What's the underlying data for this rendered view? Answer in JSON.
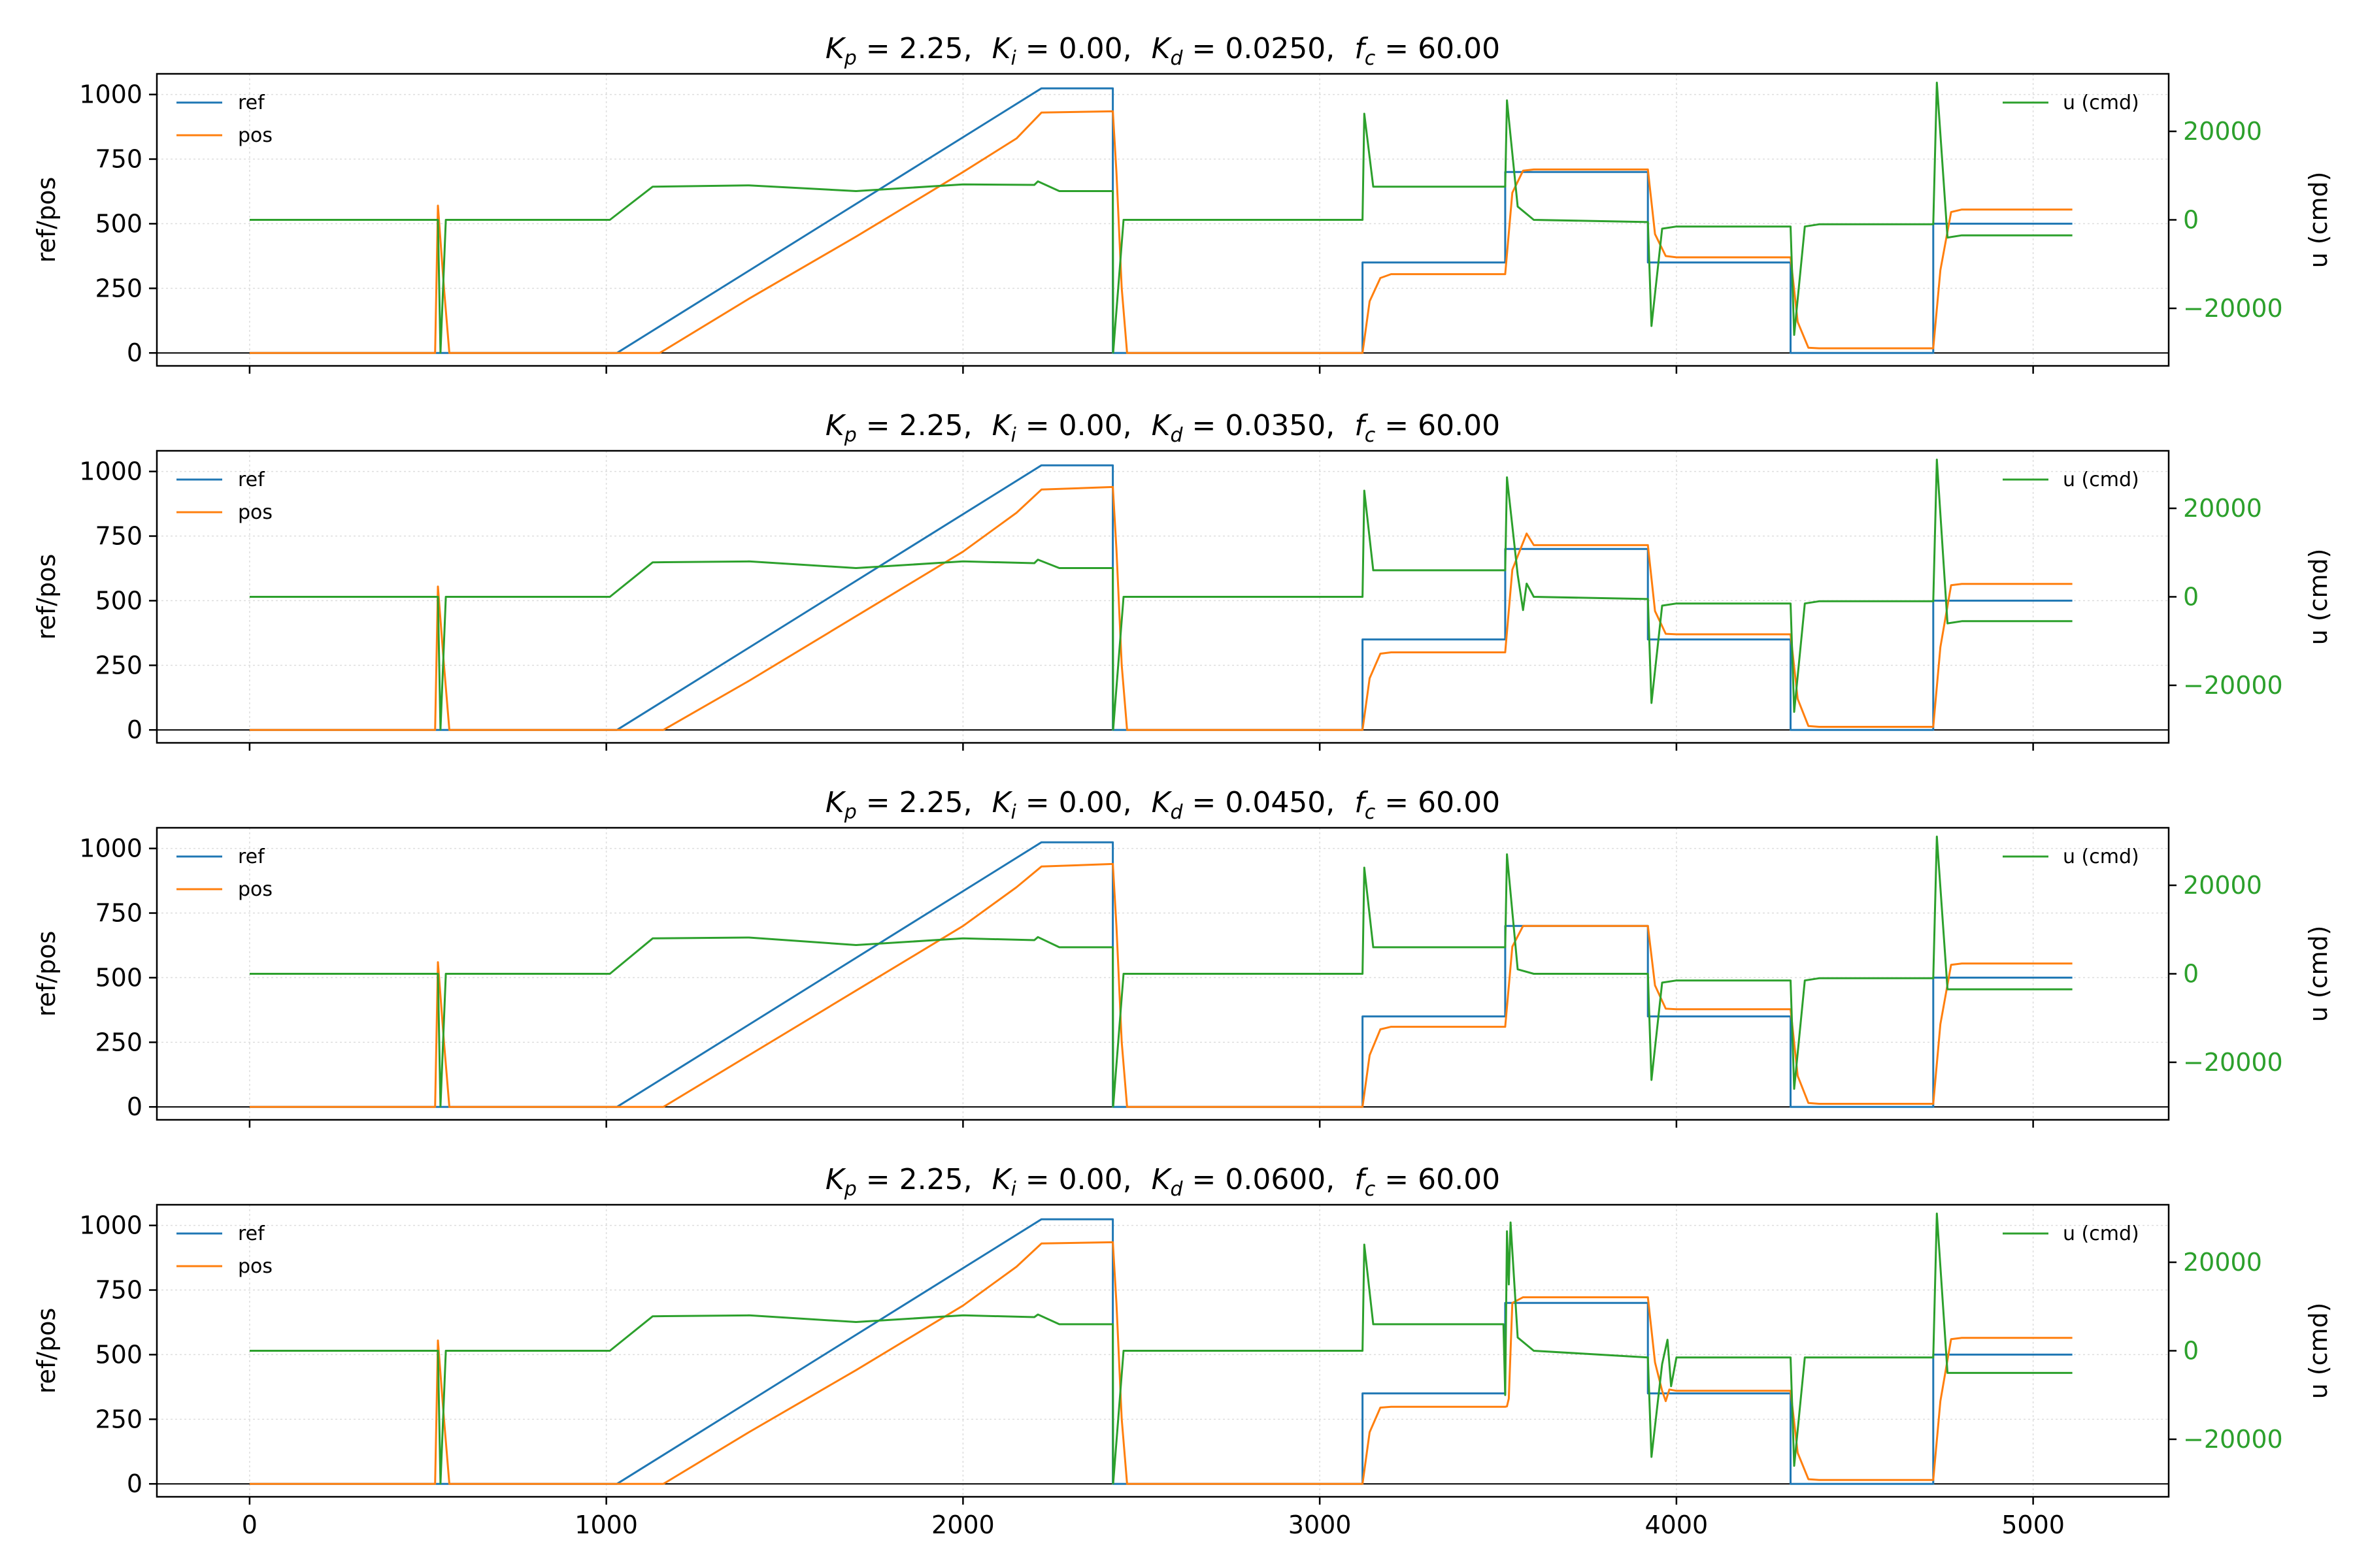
{
  "colors": {
    "ref": "#1f77b4",
    "pos": "#ff7f0e",
    "u": "#2ca02c",
    "grid": "#dddddd"
  },
  "chart_data": [
    {
      "type": "line",
      "title": "K_p = 2.25,  K_i = 0.00,  K_d = 0.0250,  f_c = 60.00",
      "title_parts": {
        "kp": "2.25",
        "ki": "0.00",
        "kd": "0.0250",
        "fc": "60.00"
      },
      "ylabel": "ref/pos",
      "ylabel_right": "u (cmd)",
      "xlim": [
        -260,
        5380
      ],
      "ylim": [
        -50,
        1080
      ],
      "ylim_right": [
        -33000,
        33000
      ],
      "xticks": [
        0,
        1000,
        2000,
        3000,
        4000,
        5000
      ],
      "yticks": [
        0,
        250,
        500,
        750,
        1000
      ],
      "yticks_right": [
        -20000,
        0,
        20000
      ],
      "x_tick_labels_visible": false,
      "grid": true,
      "legend_left": "upper-left",
      "legend_right": "upper-right",
      "series": [
        {
          "name": "ref",
          "axis": "left",
          "x": [
            0,
            1030,
            2220,
            2420,
            2420,
            3120,
            3120,
            3520,
            3520,
            3920,
            3920,
            4320,
            4320,
            4720,
            4720,
            5110
          ],
          "y": [
            0,
            0,
            1024,
            1024,
            0,
            0,
            350,
            350,
            700,
            700,
            350,
            350,
            0,
            0,
            500,
            500
          ]
        },
        {
          "name": "pos",
          "axis": "left",
          "x": [
            0,
            520,
            528,
            545,
            560,
            1150,
            1400,
            1700,
            2000,
            2150,
            2220,
            2420,
            2430,
            2445,
            2460,
            3120,
            3140,
            3170,
            3200,
            3520,
            3540,
            3570,
            3600,
            3920,
            3940,
            3970,
            4000,
            4320,
            4340,
            4370,
            4400,
            4720,
            4740,
            4770,
            4800,
            5110
          ],
          "y": [
            0,
            0,
            570,
            250,
            0,
            0,
            210,
            450,
            700,
            830,
            930,
            935,
            700,
            250,
            0,
            0,
            200,
            290,
            305,
            305,
            620,
            705,
            710,
            710,
            460,
            375,
            370,
            370,
            120,
            20,
            18,
            18,
            320,
            545,
            555,
            555
          ]
        },
        {
          "name": "u (cmd)",
          "axis": "right",
          "x": [
            0,
            520,
            528,
            535,
            550,
            560,
            1010,
            1130,
            1400,
            1700,
            2000,
            2200,
            2210,
            2270,
            2420,
            2421,
            2450,
            3120,
            3125,
            3150,
            3200,
            3520,
            3525,
            3555,
            3600,
            3920,
            3930,
            3960,
            4000,
            4320,
            4330,
            4360,
            4400,
            4720,
            4730,
            4760,
            4800,
            5110
          ],
          "y": [
            0,
            0,
            0,
            -30000,
            0,
            0,
            0,
            7500,
            7800,
            6500,
            8000,
            7900,
            8700,
            6500,
            6500,
            -30000,
            0,
            0,
            24000,
            7500,
            7500,
            7500,
            27000,
            3000,
            0,
            -500,
            -24000,
            -2000,
            -1500,
            -1500,
            -26000,
            -1500,
            -1000,
            -1000,
            31000,
            -4000,
            -3500,
            -3500
          ]
        }
      ]
    },
    {
      "type": "line",
      "title": "K_p = 2.25,  K_i = 0.00,  K_d = 0.0350,  f_c = 60.00",
      "title_parts": {
        "kp": "2.25",
        "ki": "0.00",
        "kd": "0.0350",
        "fc": "60.00"
      },
      "ylabel": "ref/pos",
      "ylabel_right": "u (cmd)",
      "xlim": [
        -260,
        5380
      ],
      "ylim": [
        -50,
        1080
      ],
      "ylim_right": [
        -33000,
        33000
      ],
      "xticks": [
        0,
        1000,
        2000,
        3000,
        4000,
        5000
      ],
      "yticks": [
        0,
        250,
        500,
        750,
        1000
      ],
      "yticks_right": [
        -20000,
        0,
        20000
      ],
      "x_tick_labels_visible": false,
      "grid": true,
      "legend_left": "upper-left",
      "legend_right": "upper-right",
      "series": [
        {
          "name": "ref",
          "axis": "left",
          "x": [
            0,
            1030,
            2220,
            2420,
            2420,
            3120,
            3120,
            3520,
            3520,
            3920,
            3920,
            4320,
            4320,
            4720,
            4720,
            5110
          ],
          "y": [
            0,
            0,
            1024,
            1024,
            0,
            0,
            350,
            350,
            700,
            700,
            350,
            350,
            0,
            0,
            500,
            500
          ]
        },
        {
          "name": "pos",
          "axis": "left",
          "x": [
            0,
            520,
            528,
            545,
            560,
            1160,
            1400,
            1700,
            2000,
            2150,
            2220,
            2420,
            2430,
            2445,
            2460,
            3120,
            3140,
            3170,
            3200,
            3520,
            3540,
            3560,
            3580,
            3600,
            3920,
            3940,
            3970,
            4000,
            4320,
            4340,
            4370,
            4400,
            4720,
            4740,
            4770,
            4800,
            5110
          ],
          "y": [
            0,
            0,
            555,
            250,
            0,
            0,
            190,
            440,
            690,
            840,
            930,
            940,
            700,
            250,
            0,
            0,
            200,
            295,
            300,
            300,
            620,
            690,
            760,
            715,
            715,
            460,
            372,
            370,
            370,
            120,
            15,
            12,
            12,
            320,
            560,
            565,
            565
          ]
        },
        {
          "name": "u (cmd)",
          "axis": "right",
          "x": [
            0,
            520,
            528,
            535,
            550,
            560,
            1010,
            1130,
            1400,
            1700,
            2000,
            2200,
            2210,
            2270,
            2420,
            2421,
            2450,
            3120,
            3125,
            3150,
            3200,
            3520,
            3525,
            3555,
            3570,
            3580,
            3600,
            3920,
            3930,
            3960,
            4000,
            4320,
            4330,
            4360,
            4400,
            4720,
            4730,
            4760,
            4800,
            5110
          ],
          "y": [
            0,
            0,
            0,
            -30000,
            0,
            0,
            0,
            7800,
            8000,
            6500,
            8000,
            7600,
            8400,
            6500,
            6500,
            -30000,
            0,
            0,
            24000,
            6000,
            6000,
            6000,
            27000,
            5000,
            -3000,
            3000,
            0,
            -500,
            -24000,
            -2000,
            -1500,
            -1500,
            -26000,
            -1500,
            -1000,
            -1000,
            31000,
            -6000,
            -5500,
            -5500
          ]
        }
      ]
    },
    {
      "type": "line",
      "title": "K_p = 2.25,  K_i = 0.00,  K_d = 0.0450,  f_c = 60.00",
      "title_parts": {
        "kp": "2.25",
        "ki": "0.00",
        "kd": "0.0450",
        "fc": "60.00"
      },
      "ylabel": "ref/pos",
      "ylabel_right": "u (cmd)",
      "xlim": [
        -260,
        5380
      ],
      "ylim": [
        -50,
        1080
      ],
      "ylim_right": [
        -33000,
        33000
      ],
      "xticks": [
        0,
        1000,
        2000,
        3000,
        4000,
        5000
      ],
      "yticks": [
        0,
        250,
        500,
        750,
        1000
      ],
      "yticks_right": [
        -20000,
        0,
        20000
      ],
      "x_tick_labels_visible": false,
      "grid": true,
      "legend_left": "upper-left",
      "legend_right": "upper-right",
      "series": [
        {
          "name": "ref",
          "axis": "left",
          "x": [
            0,
            1030,
            2220,
            2420,
            2420,
            3120,
            3120,
            3520,
            3520,
            3920,
            3920,
            4320,
            4320,
            4720,
            4720,
            5110
          ],
          "y": [
            0,
            0,
            1024,
            1024,
            0,
            0,
            350,
            350,
            700,
            700,
            350,
            350,
            0,
            0,
            500,
            500
          ]
        },
        {
          "name": "pos",
          "axis": "left",
          "x": [
            0,
            520,
            528,
            545,
            560,
            1160,
            1400,
            1700,
            2000,
            2150,
            2220,
            2420,
            2430,
            2445,
            2460,
            3120,
            3140,
            3170,
            3200,
            3520,
            3540,
            3570,
            3600,
            3920,
            3940,
            3970,
            4000,
            4320,
            4340,
            4370,
            4400,
            4720,
            4740,
            4770,
            4800,
            5110
          ],
          "y": [
            0,
            0,
            560,
            250,
            0,
            0,
            200,
            450,
            700,
            850,
            930,
            940,
            700,
            250,
            0,
            0,
            200,
            300,
            310,
            310,
            620,
            700,
            700,
            700,
            470,
            380,
            378,
            378,
            120,
            15,
            12,
            12,
            320,
            550,
            555,
            555
          ]
        },
        {
          "name": "u (cmd)",
          "axis": "right",
          "x": [
            0,
            520,
            528,
            535,
            550,
            560,
            1010,
            1130,
            1400,
            1700,
            2000,
            2200,
            2210,
            2270,
            2420,
            2421,
            2450,
            3120,
            3125,
            3150,
            3200,
            3520,
            3525,
            3555,
            3600,
            3920,
            3930,
            3960,
            4000,
            4320,
            4330,
            4360,
            4400,
            4720,
            4730,
            4760,
            4800,
            5110
          ],
          "y": [
            0,
            0,
            0,
            -30000,
            0,
            0,
            0,
            8000,
            8200,
            6500,
            8000,
            7600,
            8300,
            6000,
            6000,
            -30000,
            0,
            0,
            24000,
            6000,
            6000,
            6000,
            27000,
            1000,
            0,
            0,
            -24000,
            -2000,
            -1500,
            -1500,
            -26000,
            -1500,
            -1000,
            -1000,
            31000,
            -3500,
            -3500,
            -3500
          ]
        }
      ]
    },
    {
      "type": "line",
      "title": "K_p = 2.25,  K_i = 0.00,  K_d = 0.0600,  f_c = 60.00",
      "title_parts": {
        "kp": "2.25",
        "ki": "0.00",
        "kd": "0.0600",
        "fc": "60.00"
      },
      "ylabel": "ref/pos",
      "ylabel_right": "u (cmd)",
      "xlim": [
        -260,
        5380
      ],
      "ylim": [
        -50,
        1080
      ],
      "ylim_right": [
        -33000,
        33000
      ],
      "xticks": [
        0,
        1000,
        2000,
        3000,
        4000,
        5000
      ],
      "xtick_labels": [
        "0",
        "1000",
        "2000",
        "3000",
        "4000",
        "5000"
      ],
      "yticks": [
        0,
        250,
        500,
        750,
        1000
      ],
      "yticks_right": [
        -20000,
        0,
        20000
      ],
      "x_tick_labels_visible": true,
      "grid": true,
      "legend_left": "upper-left",
      "legend_right": "upper-right",
      "series": [
        {
          "name": "ref",
          "axis": "left",
          "x": [
            0,
            1030,
            2220,
            2420,
            2420,
            3120,
            3120,
            3520,
            3520,
            3920,
            3920,
            4320,
            4320,
            4720,
            4720,
            5110
          ],
          "y": [
            0,
            0,
            1024,
            1024,
            0,
            0,
            350,
            350,
            700,
            700,
            350,
            350,
            0,
            0,
            500,
            500
          ]
        },
        {
          "name": "pos",
          "axis": "left",
          "x": [
            0,
            520,
            528,
            545,
            560,
            1160,
            1400,
            1700,
            2000,
            2150,
            2220,
            2420,
            2430,
            2445,
            2460,
            3120,
            3140,
            3170,
            3200,
            3520,
            3525,
            3530,
            3540,
            3570,
            3600,
            3920,
            3940,
            3960,
            3970,
            3980,
            4000,
            4320,
            4340,
            4370,
            4400,
            4720,
            4740,
            4770,
            4800,
            5110
          ],
          "y": [
            0,
            0,
            555,
            250,
            0,
            0,
            200,
            440,
            690,
            840,
            930,
            935,
            700,
            250,
            0,
            0,
            200,
            295,
            298,
            298,
            300,
            330,
            700,
            722,
            722,
            722,
            470,
            360,
            320,
            365,
            360,
            360,
            120,
            18,
            15,
            15,
            320,
            560,
            565,
            565
          ]
        },
        {
          "name": "u (cmd)",
          "axis": "right",
          "x": [
            0,
            520,
            528,
            535,
            550,
            560,
            1010,
            1130,
            1400,
            1700,
            2000,
            2200,
            2210,
            2270,
            2420,
            2421,
            2450,
            3120,
            3125,
            3150,
            3200,
            3515,
            3520,
            3525,
            3530,
            3535,
            3555,
            3600,
            3920,
            3930,
            3960,
            3975,
            3985,
            4000,
            4320,
            4330,
            4360,
            4400,
            4720,
            4730,
            4760,
            4800,
            5110
          ],
          "y": [
            0,
            0,
            0,
            -30000,
            0,
            0,
            0,
            7800,
            8000,
            6500,
            8000,
            7600,
            8200,
            6000,
            6000,
            -30000,
            0,
            0,
            24000,
            6000,
            6000,
            6000,
            -10000,
            27000,
            15000,
            29000,
            3000,
            0,
            -1500,
            -24000,
            -3000,
            2500,
            -8000,
            -1500,
            -1500,
            -26000,
            -1500,
            -1500,
            -1500,
            31000,
            -5000,
            -5000,
            -5000
          ]
        }
      ]
    }
  ]
}
